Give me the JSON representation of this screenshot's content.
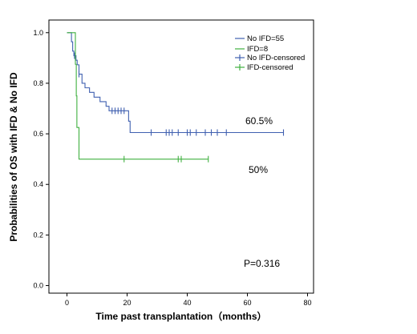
{
  "chart_data": {
    "type": "line",
    "subtype": "kaplan-meier-step",
    "title": "",
    "xlabel": "Time past transplantation（months）",
    "ylabel": "Probabilities of OS with IFD & No IFD",
    "xlim": [
      -6,
      82
    ],
    "ylim": [
      -0.03,
      1.05
    ],
    "xticks": [
      "0",
      "20",
      "40",
      "60",
      "80"
    ],
    "yticks": [
      "0.0",
      "0.2",
      "0.4",
      "0.6",
      "0.8",
      "1.0"
    ],
    "grid": false,
    "legend_position": "top-right",
    "legend": [
      "No IFD=55",
      "IFD=8",
      "No IFD-censored",
      "IFD-censored"
    ],
    "series": [
      {
        "name": "No IFD=55",
        "color": "#4060b0",
        "steps": [
          [
            0,
            1.0
          ],
          [
            1.5,
            0.964
          ],
          [
            1.9,
            0.927
          ],
          [
            2.3,
            0.909
          ],
          [
            3.0,
            0.891
          ],
          [
            3.4,
            0.873
          ],
          [
            4.0,
            0.836
          ],
          [
            5.0,
            0.8
          ],
          [
            6.0,
            0.782
          ],
          [
            7.5,
            0.764
          ],
          [
            9.0,
            0.745
          ],
          [
            11.0,
            0.727
          ],
          [
            13.0,
            0.709
          ],
          [
            14.0,
            0.691
          ],
          [
            20.5,
            0.65
          ],
          [
            21.0,
            0.605
          ],
          [
            72.0,
            0.605
          ]
        ],
        "censored": [
          [
            2.5,
            0.909
          ],
          [
            4.0,
            0.836
          ],
          [
            15.0,
            0.691
          ],
          [
            16.0,
            0.691
          ],
          [
            17.0,
            0.691
          ],
          [
            18.0,
            0.691
          ],
          [
            19.0,
            0.691
          ],
          [
            28.0,
            0.605
          ],
          [
            33.0,
            0.605
          ],
          [
            34.0,
            0.605
          ],
          [
            35.0,
            0.605
          ],
          [
            37.0,
            0.605
          ],
          [
            40.0,
            0.605
          ],
          [
            41.0,
            0.605
          ],
          [
            43.0,
            0.605
          ],
          [
            46.0,
            0.605
          ],
          [
            48.0,
            0.605
          ],
          [
            50.0,
            0.605
          ],
          [
            53.0,
            0.605
          ],
          [
            72.0,
            0.605
          ]
        ]
      },
      {
        "name": "IFD=8",
        "color": "#40b040",
        "steps": [
          [
            0,
            1.0
          ],
          [
            2.8,
            1.0
          ],
          [
            2.8,
            0.875
          ],
          [
            3.1,
            0.75
          ],
          [
            3.3,
            0.625
          ],
          [
            4.0,
            0.5
          ],
          [
            47.0,
            0.5
          ]
        ],
        "censored": [
          [
            19.0,
            0.5
          ],
          [
            37.0,
            0.5
          ],
          [
            38.0,
            0.5
          ],
          [
            47.0,
            0.5
          ]
        ]
      }
    ],
    "annotations": [
      "60.5%",
      "50%",
      "P=0.316"
    ]
  }
}
